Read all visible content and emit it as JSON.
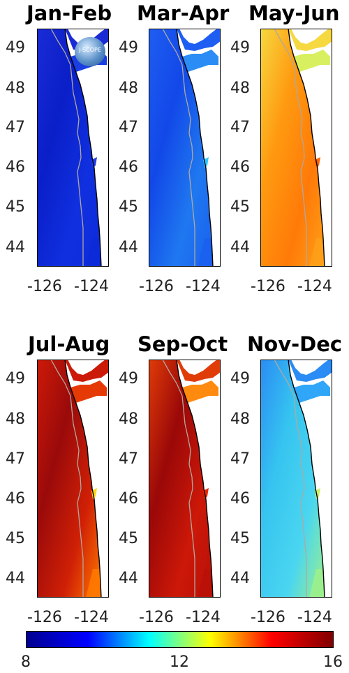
{
  "panels": [
    {
      "title": "Jan-Feb",
      "deep": "#0a1fc8",
      "coast": "#1030e0",
      "north": "#1a2bd6",
      "channel": "#1a3de4",
      "south": "#0d2ad8",
      "hot": "#2440e8"
    },
    {
      "title": "Mar-Apr",
      "deep": "#1248e8",
      "coast": "#1f78f0",
      "north": "#1f5ef2",
      "channel": "#2a8cf4",
      "south": "#1a60ee",
      "hot": "#30c8ff"
    },
    {
      "title": "May-Jun",
      "deep": "#ff9a10",
      "coast": "#ff7a08",
      "north": "#f6d840",
      "channel": "#d8f060",
      "south": "#ffa018",
      "hot": "#ff6000"
    },
    {
      "title": "Jul-Aug",
      "deep": "#9a0a0a",
      "coast": "#d02006",
      "north": "#cc1a08",
      "channel": "#e63a06",
      "south": "#ff7a00",
      "hot": "#ffd820"
    },
    {
      "title": "Sep-Oct",
      "deep": "#9a0808",
      "coast": "#cc1808",
      "north": "#e03c08",
      "channel": "#ff8a10",
      "south": "#b81008",
      "hot": "#e82a06"
    },
    {
      "title": "Nov-Dec",
      "deep": "#36c4f0",
      "coast": "#4ad6f0",
      "north": "#2a8cf4",
      "channel": "#2fa6f8",
      "south": "#9cf08a",
      "hot": "#c8f060"
    }
  ],
  "y_ticks": [
    "49",
    "48",
    "47",
    "46",
    "45",
    "44"
  ],
  "x_ticks": [
    "-126",
    "-124"
  ],
  "logo_text": "J-SCOPE",
  "colorbar": {
    "ticks": [
      "8",
      "12",
      "16"
    ],
    "min": 8,
    "max": 16,
    "colors": [
      "#00008f",
      "#0000ff",
      "#00ffff",
      "#ffff00",
      "#ff0000",
      "#800000"
    ]
  }
}
